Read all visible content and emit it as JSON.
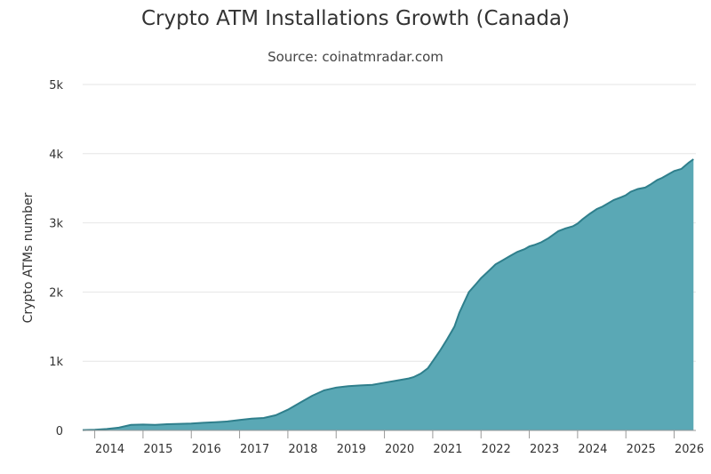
{
  "chart_data": {
    "type": "area",
    "title": "Crypto ATM Installations Growth (Canada)",
    "subtitle": "Source: coinatmradar.com",
    "ylabel": "Crypto ATMs number",
    "xlabel": "",
    "xlim": [
      2013.75,
      2026.45
    ],
    "ylim": [
      0,
      5000
    ],
    "yticks": [
      {
        "value": 0,
        "label": "0"
      },
      {
        "value": 1000,
        "label": "1k"
      },
      {
        "value": 2000,
        "label": "2k"
      },
      {
        "value": 3000,
        "label": "3k"
      },
      {
        "value": 4000,
        "label": "4k"
      },
      {
        "value": 5000,
        "label": "5k"
      }
    ],
    "xticks": [
      {
        "value": 2014,
        "label": "2014"
      },
      {
        "value": 2015,
        "label": "2015"
      },
      {
        "value": 2016,
        "label": "2016"
      },
      {
        "value": 2017,
        "label": "2017"
      },
      {
        "value": 2018,
        "label": "2018"
      },
      {
        "value": 2019,
        "label": "2019"
      },
      {
        "value": 2020,
        "label": "2020"
      },
      {
        "value": 2021,
        "label": "2021"
      },
      {
        "value": 2022,
        "label": "2022"
      },
      {
        "value": 2023,
        "label": "2023"
      },
      {
        "value": 2024,
        "label": "2024"
      },
      {
        "value": 2025,
        "label": "2025"
      },
      {
        "value": 2026,
        "label": "2026"
      }
    ],
    "grid": true,
    "legend": "none",
    "fill_color": "#5aa8b5",
    "line_color": "#2f7f8c",
    "series": [
      {
        "x": [
          2013.75,
          2014.0,
          2014.25,
          2014.5,
          2014.75,
          2015.0,
          2015.25,
          2015.5,
          2015.75,
          2016.0,
          2016.25,
          2016.5,
          2016.75,
          2017.0,
          2017.25,
          2017.5,
          2017.75,
          2018.0,
          2018.25,
          2018.5,
          2018.75,
          2019.0,
          2019.25,
          2019.5,
          2019.75,
          2020.0,
          2020.25,
          2020.5,
          2020.6,
          2020.75,
          2020.9,
          2021.0,
          2021.15,
          2021.3,
          2021.45,
          2021.55,
          2021.65,
          2021.75,
          2021.9,
          2022.0,
          2022.15,
          2022.3,
          2022.45,
          2022.6,
          2022.75,
          2022.9,
          2023.0,
          2023.1,
          2023.25,
          2023.4,
          2023.5,
          2023.6,
          2023.75,
          2023.9,
          2024.0,
          2024.1,
          2024.25,
          2024.4,
          2024.5,
          2024.6,
          2024.75,
          2024.9,
          2025.0,
          2025.1,
          2025.25,
          2025.4,
          2025.5,
          2025.65,
          2025.75,
          2025.9,
          2026.0,
          2026.15,
          2026.3,
          2026.4
        ],
        "y": [
          5,
          10,
          20,
          40,
          80,
          85,
          80,
          90,
          95,
          100,
          110,
          120,
          130,
          150,
          170,
          180,
          220,
          300,
          400,
          500,
          580,
          620,
          640,
          650,
          660,
          690,
          720,
          750,
          770,
          820,
          900,
          1000,
          1150,
          1320,
          1500,
          1700,
          1850,
          2000,
          2120,
          2200,
          2300,
          2400,
          2460,
          2520,
          2580,
          2620,
          2660,
          2680,
          2720,
          2780,
          2830,
          2880,
          2920,
          2950,
          2990,
          3050,
          3130,
          3200,
          3230,
          3270,
          3330,
          3370,
          3400,
          3450,
          3490,
          3510,
          3550,
          3620,
          3650,
          3710,
          3750,
          3780,
          3870,
          3920
        ]
      }
    ]
  }
}
